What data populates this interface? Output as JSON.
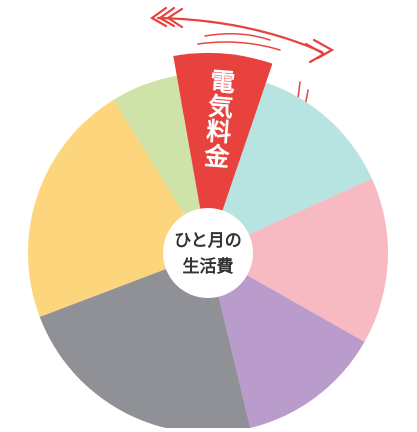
{
  "chart_data": {
    "type": "pie",
    "center_label": [
      "ひと月の",
      "生活費"
    ],
    "categories": [
      "電気料金",
      null,
      null,
      null,
      null,
      null,
      null
    ],
    "values": [
      8,
      13,
      15,
      13,
      23,
      22,
      6
    ],
    "colors": [
      "#e8423f",
      "#b7e3e0",
      "#f7b9c2",
      "#b99ccb",
      "#8f9197",
      "#fdd57c",
      "#cfe3a8"
    ],
    "highlight": 0
  }
}
